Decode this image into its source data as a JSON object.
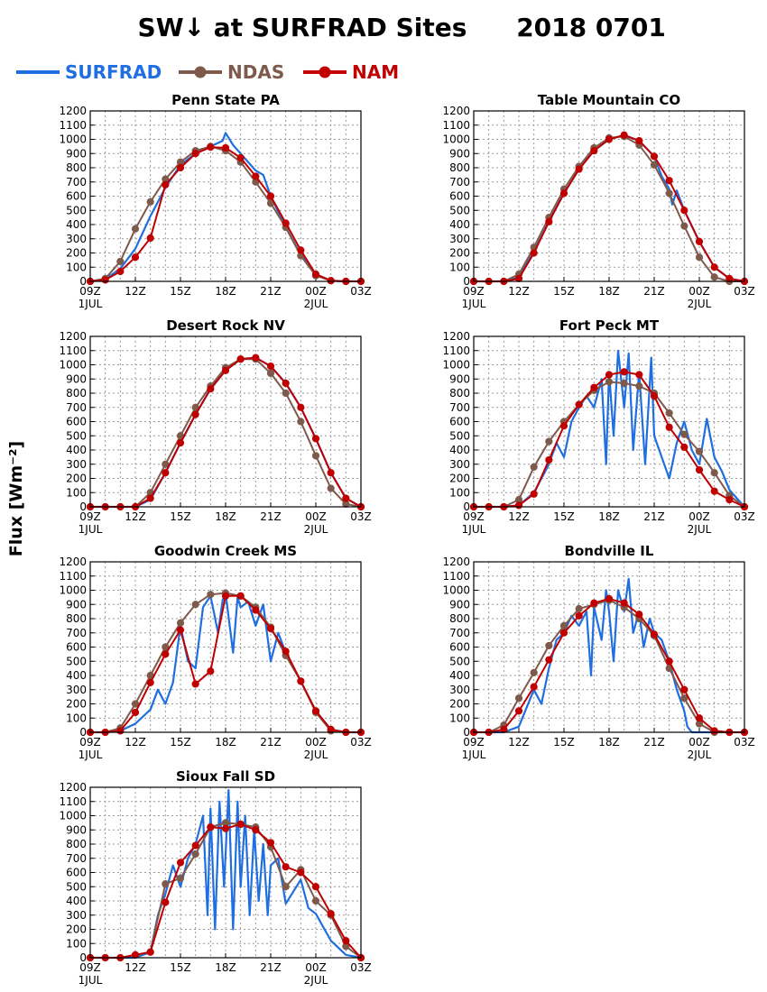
{
  "chart_data": {
    "type": "line",
    "title": "SW↓ at SURFRAD Sites",
    "date_label": "2018 0701",
    "ylabel": "Flux [Wm⁻²]",
    "x_ticks": [
      "09Z",
      "12Z",
      "15Z",
      "18Z",
      "21Z",
      "00Z",
      "03Z"
    ],
    "x_subticks": [
      "1JUL",
      "",
      "",
      "",
      "",
      "2JUL",
      ""
    ],
    "x_range_hours": [
      9,
      27
    ],
    "y_ticks": [
      0,
      100,
      200,
      300,
      400,
      500,
      600,
      700,
      800,
      900,
      1000,
      1100,
      1200
    ],
    "ylim": [
      0,
      1200
    ],
    "grid": true,
    "legend": {
      "placement": "top-left",
      "items": [
        {
          "name": "SURFRAD",
          "color": "#1f6fe0",
          "marker": "none"
        },
        {
          "name": "NDAS",
          "color": "#7d5a4b",
          "marker": "circle"
        },
        {
          "name": "NAM",
          "color": "#c00000",
          "marker": "circle"
        }
      ]
    },
    "panels": [
      {
        "title": "Penn State PA",
        "x_hours": [
          9,
          10,
          11,
          12,
          13,
          14,
          15,
          16,
          17,
          18,
          19,
          20,
          21,
          22,
          23,
          24,
          25,
          26,
          27
        ],
        "ndas": [
          0,
          20,
          140,
          370,
          560,
          720,
          840,
          920,
          950,
          920,
          840,
          700,
          550,
          380,
          180,
          40,
          5,
          0,
          0
        ],
        "nam": [
          0,
          10,
          70,
          170,
          305,
          680,
          800,
          900,
          945,
          940,
          870,
          740,
          600,
          410,
          220,
          50,
          5,
          0,
          0
        ],
        "surfrad": [
          [
            9,
            0
          ],
          [
            10,
            15
          ],
          [
            11,
            90
          ],
          [
            12,
            230
          ],
          [
            13,
            460
          ],
          [
            14,
            660
          ],
          [
            15,
            820
          ],
          [
            16,
            900
          ],
          [
            17,
            950
          ],
          [
            17.8,
            990
          ],
          [
            18,
            1045
          ],
          [
            18.5,
            960
          ],
          [
            19,
            900
          ],
          [
            20,
            780
          ],
          [
            20.5,
            750
          ],
          [
            21,
            600
          ],
          [
            22,
            380
          ],
          [
            23,
            190
          ],
          [
            24,
            50
          ],
          [
            25,
            5
          ],
          [
            26,
            0
          ],
          [
            27,
            0
          ]
        ]
      },
      {
        "title": "Table Mountain CO",
        "x_hours": [
          9,
          10,
          11,
          12,
          13,
          14,
          15,
          16,
          17,
          18,
          19,
          20,
          21,
          22,
          23,
          24,
          25,
          26,
          27
        ],
        "ndas": [
          0,
          0,
          0,
          50,
          240,
          450,
          650,
          810,
          940,
          1010,
          1020,
          960,
          820,
          620,
          390,
          170,
          30,
          0,
          0
        ],
        "nam": [
          0,
          0,
          0,
          20,
          200,
          420,
          620,
          790,
          920,
          1000,
          1030,
          990,
          880,
          710,
          500,
          280,
          100,
          20,
          0
        ],
        "surfrad": [
          [
            9,
            0
          ],
          [
            11,
            0
          ],
          [
            12,
            30
          ],
          [
            13,
            210
          ],
          [
            14,
            420
          ],
          [
            15,
            620
          ],
          [
            16,
            790
          ],
          [
            17,
            920
          ],
          [
            18,
            1000
          ],
          [
            19,
            1030
          ],
          [
            20,
            990
          ],
          [
            21,
            880
          ],
          [
            21.5,
            740
          ],
          [
            22,
            650
          ],
          [
            22.2,
            540
          ],
          [
            22.5,
            640
          ],
          [
            23,
            500
          ],
          [
            24,
            280
          ],
          [
            25,
            100
          ],
          [
            26,
            20
          ],
          [
            27,
            0
          ]
        ]
      },
      {
        "title": "Desert Rock NV",
        "x_hours": [
          9,
          10,
          11,
          12,
          13,
          14,
          15,
          16,
          17,
          18,
          19,
          20,
          21,
          22,
          23,
          24,
          25,
          26,
          27
        ],
        "ndas": [
          0,
          0,
          0,
          0,
          100,
          300,
          500,
          700,
          850,
          980,
          1040,
          1040,
          940,
          800,
          600,
          360,
          130,
          20,
          0
        ],
        "nam": [
          0,
          0,
          0,
          0,
          60,
          240,
          450,
          650,
          830,
          960,
          1040,
          1050,
          990,
          870,
          700,
          480,
          240,
          60,
          0
        ],
        "surfrad": [
          [
            9,
            0
          ],
          [
            12,
            0
          ],
          [
            13,
            50
          ],
          [
            14,
            240
          ],
          [
            15,
            450
          ],
          [
            16,
            650
          ],
          [
            17,
            830
          ],
          [
            18,
            960
          ],
          [
            19,
            1040
          ],
          [
            20,
            1050
          ],
          [
            21,
            990
          ],
          [
            22,
            870
          ],
          [
            23,
            700
          ],
          [
            24,
            480
          ],
          [
            25,
            240
          ],
          [
            26,
            60
          ],
          [
            27,
            0
          ]
        ]
      },
      {
        "title": "Fort Peck MT",
        "x_hours": [
          9,
          10,
          11,
          12,
          13,
          14,
          15,
          16,
          17,
          18,
          19,
          20,
          21,
          22,
          23,
          24,
          25,
          26,
          27
        ],
        "ndas": [
          0,
          0,
          0,
          50,
          280,
          460,
          600,
          720,
          820,
          880,
          870,
          850,
          800,
          660,
          510,
          390,
          240,
          80,
          0
        ],
        "nam": [
          0,
          0,
          0,
          10,
          90,
          330,
          570,
          720,
          840,
          930,
          950,
          930,
          780,
          560,
          420,
          260,
          110,
          50,
          0
        ],
        "surfrad": [
          [
            9,
            0
          ],
          [
            11,
            0
          ],
          [
            12,
            10
          ],
          [
            13,
            100
          ],
          [
            14,
            300
          ],
          [
            14.5,
            450
          ],
          [
            15,
            350
          ],
          [
            15.5,
            600
          ],
          [
            16,
            700
          ],
          [
            16.5,
            780
          ],
          [
            17,
            700
          ],
          [
            17.5,
            900
          ],
          [
            17.8,
            300
          ],
          [
            18,
            950
          ],
          [
            18.3,
            500
          ],
          [
            18.6,
            1100
          ],
          [
            19,
            700
          ],
          [
            19.3,
            1080
          ],
          [
            19.6,
            400
          ],
          [
            20,
            950
          ],
          [
            20.4,
            300
          ],
          [
            20.8,
            1050
          ],
          [
            21,
            500
          ],
          [
            21.5,
            350
          ],
          [
            22,
            200
          ],
          [
            22.5,
            450
          ],
          [
            23,
            600
          ],
          [
            23.5,
            400
          ],
          [
            24,
            300
          ],
          [
            24.5,
            620
          ],
          [
            25,
            350
          ],
          [
            25.5,
            250
          ],
          [
            26,
            120
          ],
          [
            27,
            0
          ]
        ]
      },
      {
        "title": "Goodwin Creek MS",
        "x_hours": [
          9,
          10,
          11,
          12,
          13,
          14,
          15,
          16,
          17,
          18,
          19,
          20,
          21,
          22,
          23,
          24,
          25,
          26,
          27
        ],
        "ndas": [
          0,
          0,
          30,
          200,
          400,
          600,
          770,
          900,
          970,
          980,
          960,
          880,
          740,
          540,
          360,
          140,
          10,
          0,
          0
        ],
        "nam": [
          0,
          0,
          10,
          140,
          350,
          550,
          720,
          340,
          430,
          960,
          960,
          860,
          730,
          570,
          360,
          150,
          20,
          0,
          0
        ],
        "surfrad": [
          [
            9,
            0
          ],
          [
            10,
            0
          ],
          [
            11,
            10
          ],
          [
            12,
            60
          ],
          [
            13,
            160
          ],
          [
            13.5,
            300
          ],
          [
            14,
            200
          ],
          [
            14.5,
            350
          ],
          [
            15,
            750
          ],
          [
            15.5,
            500
          ],
          [
            16,
            450
          ],
          [
            16.5,
            880
          ],
          [
            17,
            960
          ],
          [
            17.5,
            700
          ],
          [
            17.8,
            930
          ],
          [
            18,
            980
          ],
          [
            18.5,
            560
          ],
          [
            18.8,
            950
          ],
          [
            19,
            880
          ],
          [
            19.5,
            920
          ],
          [
            20,
            750
          ],
          [
            20.5,
            900
          ],
          [
            21,
            500
          ],
          [
            21.5,
            700
          ],
          [
            22,
            560
          ],
          [
            23,
            360
          ],
          [
            24,
            150
          ],
          [
            25,
            20
          ],
          [
            26,
            0
          ],
          [
            27,
            0
          ]
        ]
      },
      {
        "title": "Bondville IL",
        "x_hours": [
          9,
          10,
          11,
          12,
          13,
          14,
          15,
          16,
          17,
          18,
          19,
          20,
          21,
          22,
          23,
          24,
          25,
          26,
          27
        ],
        "ndas": [
          0,
          0,
          50,
          240,
          420,
          610,
          750,
          870,
          900,
          930,
          880,
          800,
          680,
          450,
          240,
          60,
          0,
          0,
          0
        ],
        "nam": [
          0,
          0,
          20,
          150,
          320,
          510,
          700,
          820,
          910,
          940,
          910,
          830,
          690,
          500,
          300,
          100,
          10,
          0,
          0
        ],
        "surfrad": [
          [
            9,
            0
          ],
          [
            11,
            0
          ],
          [
            12,
            40
          ],
          [
            13,
            300
          ],
          [
            13.5,
            200
          ],
          [
            14,
            450
          ],
          [
            14.5,
            650
          ],
          [
            15,
            700
          ],
          [
            15.5,
            820
          ],
          [
            16,
            750
          ],
          [
            16.5,
            850
          ],
          [
            16.8,
            400
          ],
          [
            17,
            880
          ],
          [
            17.5,
            650
          ],
          [
            17.8,
            1000
          ],
          [
            18,
            850
          ],
          [
            18.3,
            500
          ],
          [
            18.6,
            1000
          ],
          [
            19,
            850
          ],
          [
            19.3,
            1080
          ],
          [
            19.6,
            700
          ],
          [
            20,
            850
          ],
          [
            20.3,
            600
          ],
          [
            20.7,
            800
          ],
          [
            21,
            700
          ],
          [
            21.5,
            650
          ],
          [
            22,
            500
          ],
          [
            22.5,
            300
          ],
          [
            23,
            150
          ],
          [
            23.2,
            40
          ],
          [
            23.5,
            0
          ],
          [
            27,
            0
          ]
        ]
      },
      {
        "title": "Sioux Fall SD",
        "x_hours": [
          9,
          10,
          11,
          12,
          13,
          14,
          15,
          16,
          17,
          18,
          19,
          20,
          21,
          22,
          23,
          24,
          25,
          26,
          27
        ],
        "ndas": [
          0,
          0,
          0,
          20,
          40,
          520,
          560,
          730,
          920,
          950,
          940,
          920,
          780,
          500,
          620,
          400,
          300,
          80,
          0
        ],
        "nam": [
          0,
          0,
          0,
          20,
          40,
          390,
          670,
          790,
          920,
          910,
          940,
          900,
          810,
          640,
          600,
          500,
          310,
          120,
          0
        ],
        "surfrad": [
          [
            9,
            0
          ],
          [
            12,
            0
          ],
          [
            13,
            40
          ],
          [
            13.5,
            300
          ],
          [
            14,
            450
          ],
          [
            14.5,
            650
          ],
          [
            15,
            500
          ],
          [
            15.5,
            700
          ],
          [
            16,
            800
          ],
          [
            16.5,
            1000
          ],
          [
            16.8,
            300
          ],
          [
            17,
            1050
          ],
          [
            17.3,
            200
          ],
          [
            17.6,
            1100
          ],
          [
            17.9,
            500
          ],
          [
            18.2,
            1180
          ],
          [
            18.5,
            200
          ],
          [
            18.8,
            1100
          ],
          [
            19,
            500
          ],
          [
            19.3,
            1000
          ],
          [
            19.6,
            300
          ],
          [
            19.9,
            900
          ],
          [
            20.2,
            400
          ],
          [
            20.5,
            800
          ],
          [
            20.8,
            300
          ],
          [
            21,
            650
          ],
          [
            21.5,
            700
          ],
          [
            22,
            380
          ],
          [
            23,
            550
          ],
          [
            23.5,
            350
          ],
          [
            24,
            310
          ],
          [
            25,
            120
          ],
          [
            26,
            20
          ],
          [
            27,
            0
          ]
        ]
      }
    ]
  }
}
